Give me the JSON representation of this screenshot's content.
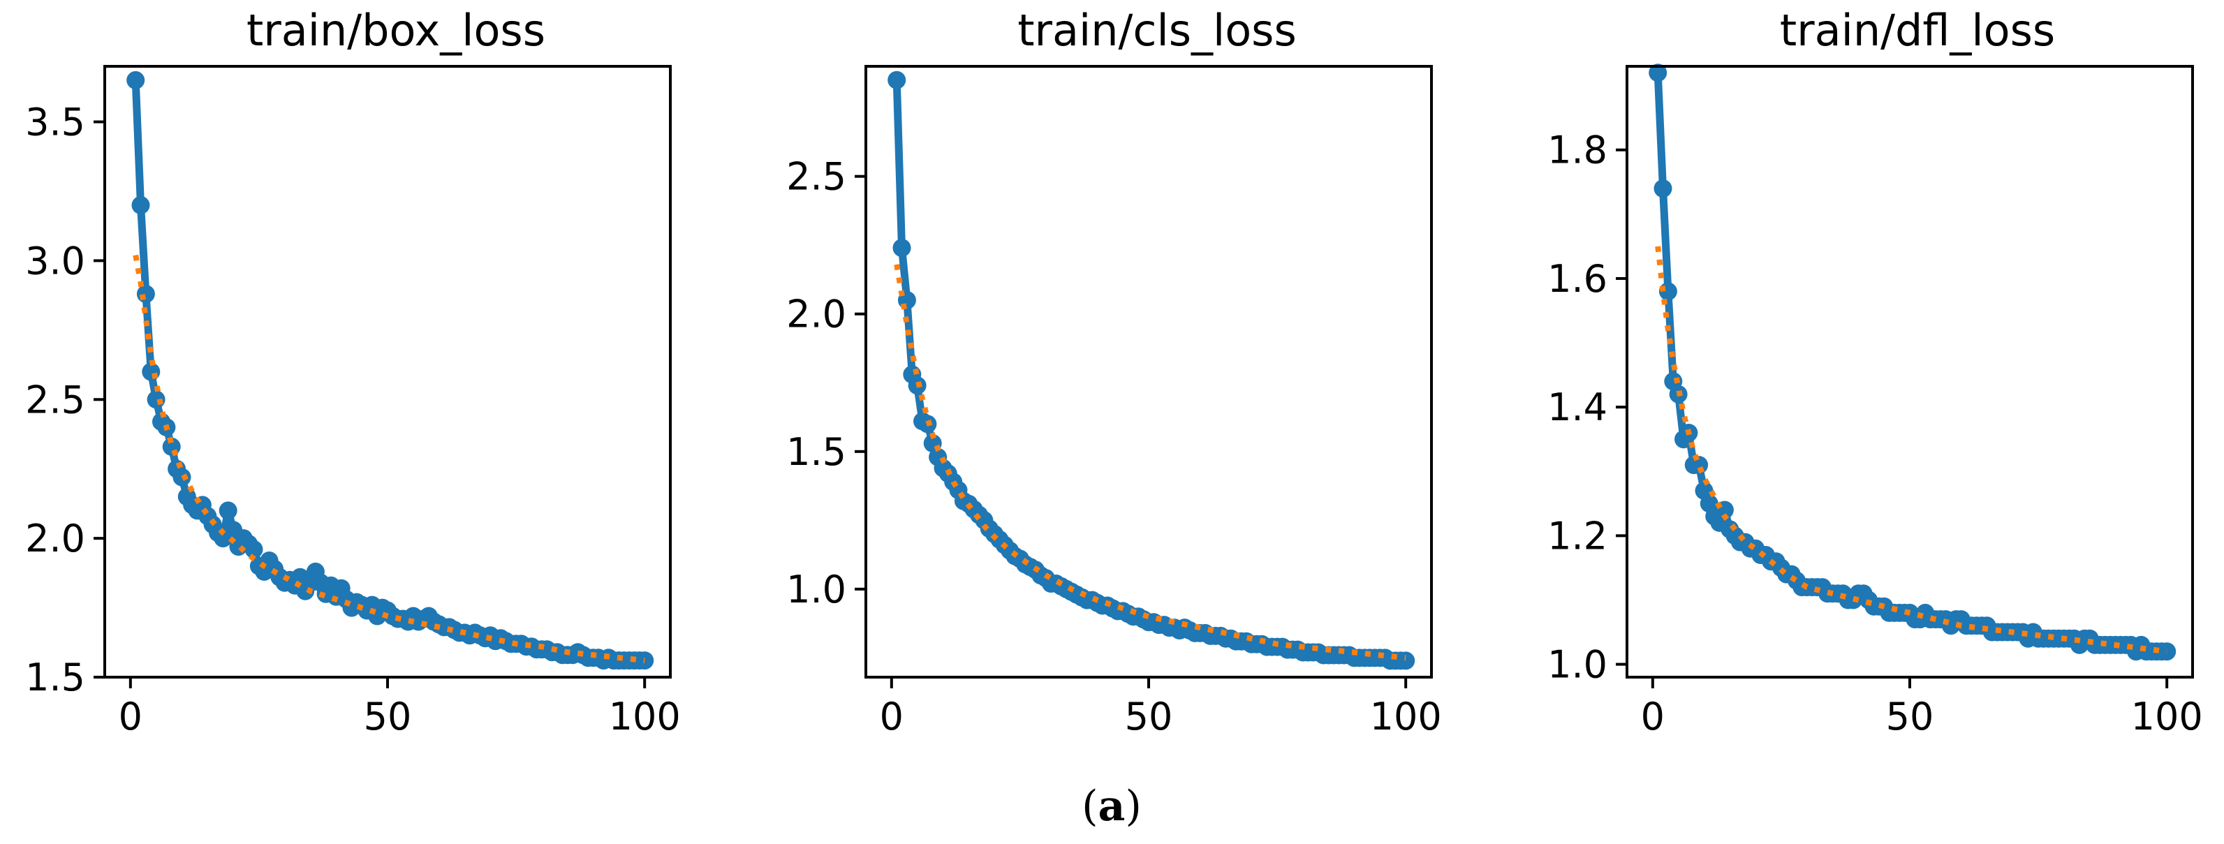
{
  "caption": {
    "open": "(",
    "letter": "a",
    "close": ")"
  },
  "colors": {
    "series_main": "#1f77b4",
    "series_fit": "#ff7f0e"
  },
  "chart_data": [
    {
      "type": "line",
      "title": "train/box_loss",
      "xlabel": "",
      "ylabel": "",
      "xlim": [
        -5,
        105
      ],
      "ylim": [
        1.5,
        3.7
      ],
      "xticks": [
        0,
        50,
        100
      ],
      "yticks": [
        1.5,
        2.0,
        2.5,
        3.0,
        3.5
      ],
      "xtick_labels": [
        "0",
        "50",
        "100"
      ],
      "ytick_labels": [
        "1.5",
        "2.0",
        "2.5",
        "3.0",
        "3.5"
      ],
      "grid": false,
      "series": [
        {
          "style": "solid-markers",
          "x": [
            1,
            2,
            3,
            4,
            5,
            6,
            7,
            8,
            9,
            10,
            11,
            12,
            13,
            14,
            15,
            16,
            17,
            18,
            19,
            20,
            21,
            22,
            23,
            24,
            25,
            26,
            27,
            28,
            29,
            30,
            31,
            32,
            33,
            34,
            35,
            36,
            37,
            38,
            39,
            40,
            41,
            42,
            43,
            44,
            45,
            46,
            47,
            48,
            49,
            50,
            51,
            52,
            53,
            54,
            55,
            56,
            57,
            58,
            59,
            60,
            61,
            62,
            63,
            64,
            65,
            66,
            67,
            68,
            69,
            70,
            71,
            72,
            73,
            74,
            75,
            76,
            77,
            78,
            79,
            80,
            81,
            82,
            83,
            84,
            85,
            86,
            87,
            88,
            89,
            90,
            91,
            92,
            93,
            94,
            95,
            96,
            97,
            98,
            99,
            100
          ],
          "values": [
            3.65,
            3.2,
            2.88,
            2.6,
            2.5,
            2.42,
            2.4,
            2.33,
            2.25,
            2.22,
            2.15,
            2.12,
            2.1,
            2.12,
            2.08,
            2.05,
            2.02,
            2.0,
            2.1,
            2.03,
            1.97,
            2.0,
            1.98,
            1.96,
            1.9,
            1.88,
            1.92,
            1.89,
            1.86,
            1.84,
            1.85,
            1.83,
            1.86,
            1.81,
            1.84,
            1.88,
            1.84,
            1.8,
            1.83,
            1.79,
            1.82,
            1.78,
            1.75,
            1.77,
            1.76,
            1.74,
            1.76,
            1.72,
            1.75,
            1.74,
            1.72,
            1.71,
            1.71,
            1.7,
            1.72,
            1.7,
            1.71,
            1.72,
            1.7,
            1.69,
            1.68,
            1.68,
            1.67,
            1.66,
            1.66,
            1.65,
            1.66,
            1.65,
            1.64,
            1.65,
            1.63,
            1.64,
            1.63,
            1.62,
            1.62,
            1.62,
            1.61,
            1.61,
            1.6,
            1.6,
            1.6,
            1.59,
            1.59,
            1.58,
            1.58,
            1.58,
            1.59,
            1.58,
            1.57,
            1.57,
            1.57,
            1.56,
            1.57,
            1.56,
            1.56,
            1.56,
            1.56,
            1.56,
            1.56,
            1.56
          ]
        },
        {
          "style": "dotted",
          "x": [
            1,
            2,
            3,
            4,
            5,
            6,
            7,
            8,
            9,
            10,
            12,
            14,
            16,
            18,
            20,
            23,
            26,
            30,
            35,
            40,
            45,
            50,
            55,
            60,
            65,
            70,
            75,
            80,
            85,
            90,
            95,
            100
          ],
          "values": [
            3.02,
            2.92,
            2.79,
            2.66,
            2.56,
            2.47,
            2.4,
            2.34,
            2.29,
            2.24,
            2.17,
            2.11,
            2.06,
            2.02,
            1.99,
            1.94,
            1.9,
            1.86,
            1.81,
            1.78,
            1.75,
            1.72,
            1.7,
            1.68,
            1.66,
            1.64,
            1.62,
            1.61,
            1.59,
            1.58,
            1.57,
            1.56
          ]
        }
      ]
    },
    {
      "type": "line",
      "title": "train/cls_loss",
      "xlabel": "",
      "ylabel": "",
      "xlim": [
        -5,
        105
      ],
      "ylim": [
        0.68,
        2.9
      ],
      "xticks": [
        0,
        50,
        100
      ],
      "yticks": [
        1.0,
        1.5,
        2.0,
        2.5
      ],
      "xtick_labels": [
        "0",
        "50",
        "100"
      ],
      "ytick_labels": [
        "1.0",
        "1.5",
        "2.0",
        "2.5"
      ],
      "grid": false,
      "series": [
        {
          "style": "solid-markers",
          "x": [
            1,
            2,
            3,
            4,
            5,
            6,
            7,
            8,
            9,
            10,
            11,
            12,
            13,
            14,
            15,
            16,
            17,
            18,
            19,
            20,
            21,
            22,
            23,
            24,
            25,
            26,
            27,
            28,
            29,
            30,
            31,
            32,
            33,
            34,
            35,
            36,
            37,
            38,
            39,
            40,
            41,
            42,
            43,
            44,
            45,
            46,
            47,
            48,
            49,
            50,
            51,
            52,
            53,
            54,
            55,
            56,
            57,
            58,
            59,
            60,
            61,
            62,
            63,
            64,
            65,
            66,
            67,
            68,
            69,
            70,
            71,
            72,
            73,
            74,
            75,
            76,
            77,
            78,
            79,
            80,
            81,
            82,
            83,
            84,
            85,
            86,
            87,
            88,
            89,
            90,
            91,
            92,
            93,
            94,
            95,
            96,
            97,
            98,
            99,
            100
          ],
          "values": [
            2.85,
            2.24,
            2.05,
            1.78,
            1.74,
            1.61,
            1.6,
            1.53,
            1.48,
            1.44,
            1.42,
            1.39,
            1.36,
            1.32,
            1.31,
            1.29,
            1.27,
            1.25,
            1.22,
            1.2,
            1.18,
            1.16,
            1.14,
            1.12,
            1.11,
            1.09,
            1.08,
            1.07,
            1.05,
            1.04,
            1.02,
            1.02,
            1.01,
            1.0,
            0.99,
            0.98,
            0.97,
            0.96,
            0.96,
            0.95,
            0.94,
            0.94,
            0.93,
            0.92,
            0.92,
            0.91,
            0.9,
            0.9,
            0.89,
            0.88,
            0.88,
            0.87,
            0.87,
            0.86,
            0.86,
            0.85,
            0.86,
            0.85,
            0.84,
            0.84,
            0.84,
            0.83,
            0.83,
            0.83,
            0.82,
            0.82,
            0.81,
            0.81,
            0.81,
            0.8,
            0.8,
            0.8,
            0.79,
            0.79,
            0.79,
            0.79,
            0.78,
            0.78,
            0.78,
            0.77,
            0.77,
            0.77,
            0.77,
            0.76,
            0.76,
            0.76,
            0.76,
            0.76,
            0.76,
            0.75,
            0.75,
            0.75,
            0.75,
            0.75,
            0.75,
            0.75,
            0.74,
            0.74,
            0.74,
            0.74
          ]
        },
        {
          "style": "dotted",
          "x": [
            1,
            2,
            3,
            4,
            5,
            6,
            7,
            8,
            9,
            10,
            12,
            14,
            16,
            18,
            20,
            23,
            26,
            30,
            35,
            40,
            45,
            50,
            55,
            60,
            65,
            70,
            75,
            80,
            85,
            90,
            95,
            100
          ],
          "values": [
            2.18,
            2.07,
            1.96,
            1.86,
            1.77,
            1.69,
            1.62,
            1.56,
            1.51,
            1.47,
            1.39,
            1.33,
            1.28,
            1.23,
            1.19,
            1.14,
            1.1,
            1.05,
            1.0,
            0.96,
            0.93,
            0.9,
            0.88,
            0.86,
            0.84,
            0.82,
            0.8,
            0.79,
            0.78,
            0.77,
            0.76,
            0.75
          ]
        }
      ]
    },
    {
      "type": "line",
      "title": "train/dfl_loss",
      "xlabel": "",
      "ylabel": "",
      "xlim": [
        -5,
        105
      ],
      "ylim": [
        0.98,
        1.93
      ],
      "xticks": [
        0,
        50,
        100
      ],
      "yticks": [
        1.0,
        1.2,
        1.4,
        1.6,
        1.8
      ],
      "xtick_labels": [
        "0",
        "50",
        "100"
      ],
      "ytick_labels": [
        "1.0",
        "1.2",
        "1.4",
        "1.6",
        "1.8"
      ],
      "grid": false,
      "series": [
        {
          "style": "solid-markers",
          "x": [
            1,
            2,
            3,
            4,
            5,
            6,
            7,
            8,
            9,
            10,
            11,
            12,
            13,
            14,
            15,
            16,
            17,
            18,
            19,
            20,
            21,
            22,
            23,
            24,
            25,
            26,
            27,
            28,
            29,
            30,
            31,
            32,
            33,
            34,
            35,
            36,
            37,
            38,
            39,
            40,
            41,
            42,
            43,
            44,
            45,
            46,
            47,
            48,
            49,
            50,
            51,
            52,
            53,
            54,
            55,
            56,
            57,
            58,
            59,
            60,
            61,
            62,
            63,
            64,
            65,
            66,
            67,
            68,
            69,
            70,
            71,
            72,
            73,
            74,
            75,
            76,
            77,
            78,
            79,
            80,
            81,
            82,
            83,
            84,
            85,
            86,
            87,
            88,
            89,
            90,
            91,
            92,
            93,
            94,
            95,
            96,
            97,
            98,
            99,
            100
          ],
          "values": [
            1.92,
            1.74,
            1.58,
            1.44,
            1.42,
            1.35,
            1.36,
            1.31,
            1.31,
            1.27,
            1.25,
            1.23,
            1.22,
            1.24,
            1.21,
            1.2,
            1.19,
            1.19,
            1.18,
            1.18,
            1.17,
            1.17,
            1.16,
            1.16,
            1.15,
            1.14,
            1.14,
            1.13,
            1.12,
            1.12,
            1.12,
            1.12,
            1.12,
            1.11,
            1.11,
            1.11,
            1.11,
            1.1,
            1.1,
            1.11,
            1.11,
            1.1,
            1.09,
            1.09,
            1.09,
            1.08,
            1.08,
            1.08,
            1.08,
            1.08,
            1.07,
            1.07,
            1.08,
            1.07,
            1.07,
            1.07,
            1.07,
            1.06,
            1.07,
            1.07,
            1.06,
            1.06,
            1.06,
            1.06,
            1.06,
            1.05,
            1.05,
            1.05,
            1.05,
            1.05,
            1.05,
            1.05,
            1.04,
            1.05,
            1.04,
            1.04,
            1.04,
            1.04,
            1.04,
            1.04,
            1.04,
            1.04,
            1.03,
            1.04,
            1.04,
            1.03,
            1.03,
            1.03,
            1.03,
            1.03,
            1.03,
            1.03,
            1.03,
            1.02,
            1.03,
            1.02,
            1.02,
            1.02,
            1.02,
            1.02
          ]
        },
        {
          "style": "dotted",
          "x": [
            1,
            2,
            3,
            4,
            5,
            6,
            7,
            8,
            9,
            10,
            12,
            14,
            16,
            18,
            20,
            23,
            26,
            30,
            35,
            40,
            45,
            50,
            55,
            60,
            65,
            70,
            75,
            80,
            85,
            90,
            95,
            100
          ],
          "values": [
            1.65,
            1.58,
            1.52,
            1.47,
            1.43,
            1.39,
            1.36,
            1.33,
            1.31,
            1.29,
            1.26,
            1.23,
            1.21,
            1.19,
            1.18,
            1.16,
            1.14,
            1.12,
            1.11,
            1.1,
            1.09,
            1.08,
            1.07,
            1.06,
            1.055,
            1.05,
            1.045,
            1.04,
            1.035,
            1.03,
            1.025,
            1.02
          ]
        }
      ]
    }
  ]
}
